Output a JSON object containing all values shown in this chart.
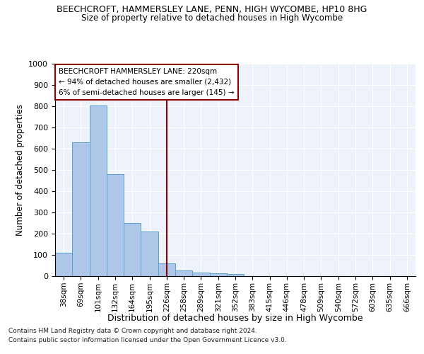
{
  "title": "BEECHCROFT, HAMMERSLEY LANE, PENN, HIGH WYCOMBE, HP10 8HG",
  "subtitle": "Size of property relative to detached houses in High Wycombe",
  "xlabel": "Distribution of detached houses by size in High Wycombe",
  "ylabel": "Number of detached properties",
  "bar_values": [
    110,
    630,
    805,
    480,
    250,
    210,
    60,
    28,
    18,
    13,
    10,
    0,
    0,
    0,
    0,
    0,
    0,
    0,
    0,
    0,
    0
  ],
  "categories": [
    "38sqm",
    "69sqm",
    "101sqm",
    "132sqm",
    "164sqm",
    "195sqm",
    "226sqm",
    "258sqm",
    "289sqm",
    "321sqm",
    "352sqm",
    "383sqm",
    "415sqm",
    "446sqm",
    "478sqm",
    "509sqm",
    "540sqm",
    "572sqm",
    "603sqm",
    "635sqm",
    "666sqm"
  ],
  "bar_color": "#aec6e8",
  "bar_edge_color": "#5a9fd4",
  "vline_x": 6.0,
  "vline_color": "#8b0000",
  "annotation_title": "BEECHCROFT HAMMERSLEY LANE: 220sqm",
  "annotation_line1": "← 94% of detached houses are smaller (2,432)",
  "annotation_line2": "6% of semi-detached houses are larger (145) →",
  "annotation_box_color": "#8b0000",
  "ylim": [
    0,
    1000
  ],
  "yticks": [
    0,
    100,
    200,
    300,
    400,
    500,
    600,
    700,
    800,
    900,
    1000
  ],
  "background_color": "#eef2fb",
  "footer1": "Contains HM Land Registry data © Crown copyright and database right 2024.",
  "footer2": "Contains public sector information licensed under the Open Government Licence v3.0."
}
